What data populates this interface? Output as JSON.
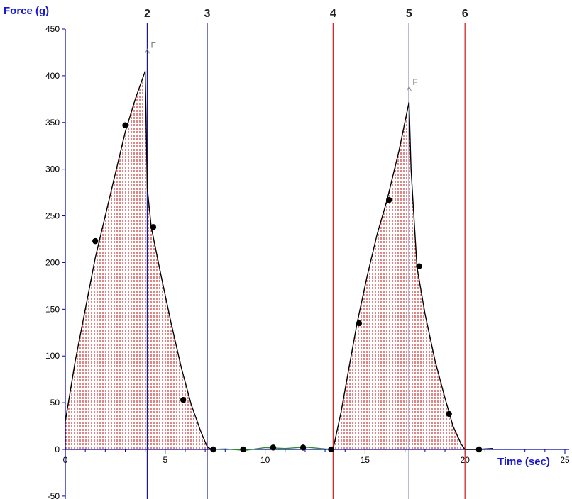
{
  "chart_data": {
    "type": "line",
    "xlabel": "Time (sec)",
    "ylabel": "Force (g)",
    "xlim": [
      0,
      25
    ],
    "ylim": [
      -50,
      450
    ],
    "x_ticks": [
      "0",
      "5",
      "10",
      "15",
      "20",
      "25"
    ],
    "y_ticks": [
      "-50",
      "0",
      "50",
      "100",
      "150",
      "200",
      "250",
      "300",
      "350",
      "400",
      "450"
    ],
    "colors": {
      "axis": "#0000aa",
      "curve": "#000000",
      "baseline_curve": "#2e8b2e",
      "fill_stripes": "#cc3333",
      "blue_marker": "#1a1a8c",
      "red_marker": "#cc2a2a",
      "point": "#000000"
    },
    "curve": [
      [
        0,
        30
      ],
      [
        0.5,
        95
      ],
      [
        1,
        150
      ],
      [
        1.5,
        205
      ],
      [
        2,
        250
      ],
      [
        2.5,
        295
      ],
      [
        3,
        340
      ],
      [
        3.5,
        375
      ],
      [
        4,
        405
      ],
      [
        4.1,
        280
      ],
      [
        4.3,
        238
      ],
      [
        4.8,
        185
      ],
      [
        5.3,
        135
      ],
      [
        5.8,
        88
      ],
      [
        6.3,
        48
      ],
      [
        6.8,
        18
      ],
      [
        7.1,
        3
      ],
      [
        7.3,
        0
      ]
    ],
    "curve2": [
      [
        13.4,
        0
      ],
      [
        13.8,
        40
      ],
      [
        14.2,
        88
      ],
      [
        14.6,
        135
      ],
      [
        15.1,
        185
      ],
      [
        15.6,
        230
      ],
      [
        16.1,
        267
      ],
      [
        16.7,
        320
      ],
      [
        17.2,
        372
      ],
      [
        17.3,
        300
      ],
      [
        17.6,
        195
      ],
      [
        18.0,
        145
      ],
      [
        18.5,
        95
      ],
      [
        19.0,
        55
      ],
      [
        19.4,
        25
      ],
      [
        19.8,
        6
      ],
      [
        20.0,
        0
      ]
    ],
    "baseline": [
      [
        7.3,
        0
      ],
      [
        8,
        0.5
      ],
      [
        9,
        -1
      ],
      [
        10,
        2
      ],
      [
        11,
        1
      ],
      [
        12,
        2.5
      ],
      [
        13,
        0.5
      ],
      [
        13.4,
        0
      ]
    ],
    "tail": [
      [
        20.0,
        0
      ],
      [
        20.6,
        0
      ],
      [
        21.4,
        1
      ]
    ],
    "points": [
      [
        1.5,
        223
      ],
      [
        3.0,
        347
      ],
      [
        4.4,
        238
      ],
      [
        5.9,
        53
      ],
      [
        7.4,
        0
      ],
      [
        8.9,
        0
      ],
      [
        10.4,
        2
      ],
      [
        11.9,
        2
      ],
      [
        13.3,
        0
      ],
      [
        14.7,
        135
      ],
      [
        16.2,
        267
      ],
      [
        17.7,
        196
      ],
      [
        19.2,
        38
      ],
      [
        20.7,
        0
      ]
    ],
    "markers": [
      {
        "label": "2",
        "x": 4.1,
        "color": "blue"
      },
      {
        "label": "3",
        "x": 7.1,
        "color": "blue"
      },
      {
        "label": "4",
        "x": 13.4,
        "color": "red"
      },
      {
        "label": "5",
        "x": 17.2,
        "color": "blue"
      },
      {
        "label": "6",
        "x": 20.0,
        "color": "red"
      }
    ],
    "peak_flags": [
      {
        "label": "F",
        "x": 4.1,
        "y": 430
      },
      {
        "label": "F",
        "x": 17.2,
        "y": 390
      }
    ]
  }
}
